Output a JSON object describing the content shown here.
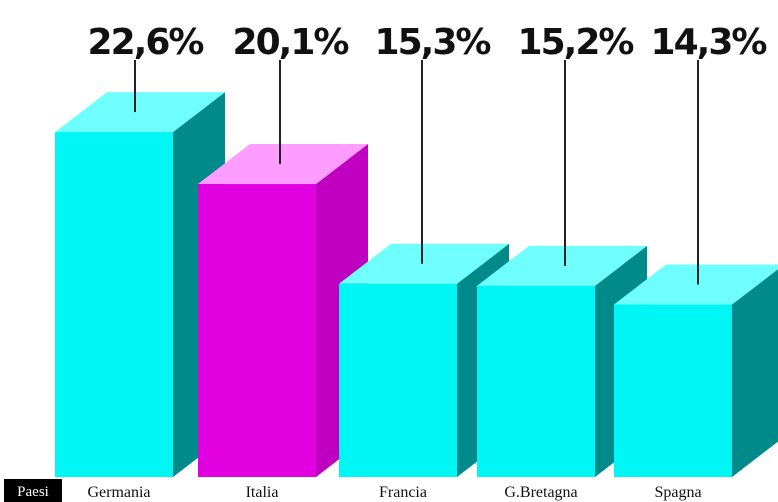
{
  "chart_data": {
    "type": "bar3d",
    "x_label": "Paesi",
    "categories": [
      "Germania",
      "Italia",
      "Francia",
      "G.Bretagna",
      "Spagna"
    ],
    "values": [
      22.6,
      20.1,
      15.3,
      15.2,
      14.3
    ],
    "value_labels": [
      "22,6%",
      "20,1%",
      "15,3%",
      "15,2%",
      "14,3%"
    ],
    "colors": [
      "#00f5f5",
      "#e000e0",
      "#00f5f5",
      "#00f5f5",
      "#00f5f5"
    ],
    "top_colors": [
      "#70ffff",
      "#ff9cff",
      "#70ffff",
      "#70ffff",
      "#70ffff"
    ],
    "side_colors": [
      "#008a8a",
      "#c000c0",
      "#008a8a",
      "#008a8a",
      "#008a8a"
    ],
    "ylim": [
      6,
      24
    ]
  }
}
